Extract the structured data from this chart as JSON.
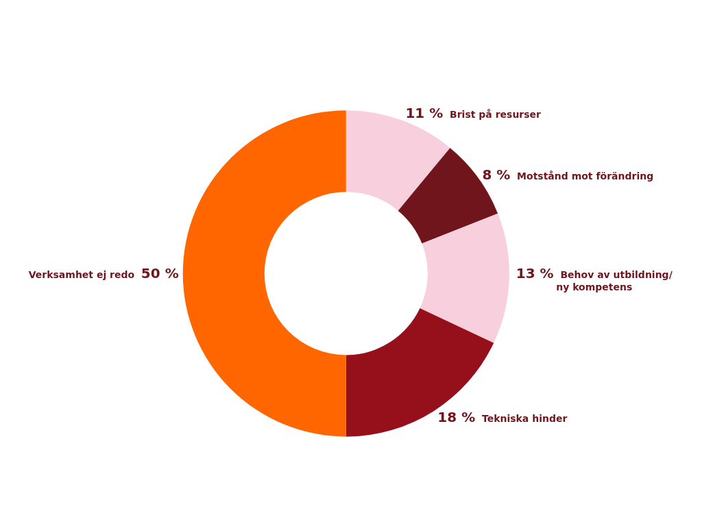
{
  "chart_data": {
    "type": "donut",
    "categories": [
      "Brist på resurser",
      "Motstånd mot förändring",
      "Behov av utbildning/\nny kompetens",
      "Tekniska hinder",
      "Verksamhet ej redo"
    ],
    "values": [
      11,
      8,
      13,
      18,
      50
    ],
    "value_labels": [
      "11 %",
      "8 %",
      "13 %",
      "18 %",
      "50 %"
    ],
    "colors": [
      "#f8cfdc",
      "#70151b",
      "#f8cfdc",
      "#96101b",
      "#ff6600"
    ],
    "legend": false
  }
}
